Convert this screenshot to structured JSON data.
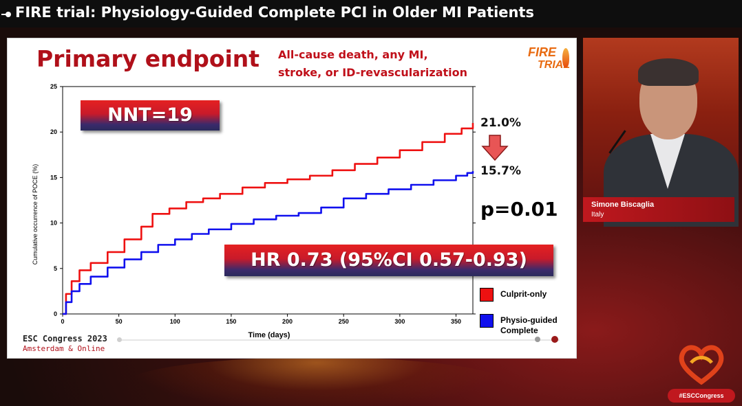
{
  "header": {
    "title": "FIRE trial: Physiology-Guided Complete PCI in Older MI Patients"
  },
  "slide": {
    "title": "Primary endpoint",
    "subtitle_lines": [
      "All-cause death, any MI,",
      "stroke, or ID-revascularization"
    ],
    "logo_word1": "FIRE",
    "logo_word2": "TRIAL",
    "nnt_label": "NNT=19",
    "hr_label": "HR 0.73 (95%CI 0.57-0.93)",
    "culprit_pct": "21.0%",
    "physio_pct": "15.7%",
    "p_value": "p=0.01",
    "legend": [
      {
        "label_lines": [
          "Culprit-only"
        ],
        "color": "#ee1111"
      },
      {
        "label_lines": [
          "Physio-guided",
          "Complete"
        ],
        "color": "#1010ee"
      }
    ],
    "footer_event": "ESC Congress 2023",
    "footer_place": "Amsterdam & Online"
  },
  "speaker": {
    "name": "Simone Biscaglia",
    "country": "Italy"
  },
  "branding": {
    "tag": "#ESCCongress"
  },
  "colors": {
    "accent_red": "#b0101a",
    "culprit": "#ee1111",
    "physio": "#1010ee"
  },
  "chart_data": {
    "type": "line",
    "title": "",
    "xlabel": "Time (days)",
    "ylabel": "Cumulative occurrence of POCE (%)",
    "xlim": [
      0,
      365
    ],
    "ylim": [
      0,
      25
    ],
    "xticks": [
      0,
      50,
      100,
      150,
      200,
      250,
      300,
      350
    ],
    "yticks": [
      0,
      5,
      10,
      15,
      20,
      25
    ],
    "grid": false,
    "series": [
      {
        "name": "Culprit-only",
        "color": "#ee1111",
        "x": [
          0,
          3,
          8,
          15,
          25,
          40,
          55,
          70,
          80,
          95,
          110,
          125,
          140,
          160,
          180,
          200,
          220,
          240,
          260,
          280,
          300,
          320,
          340,
          355,
          365
        ],
        "y": [
          0,
          2.2,
          3.6,
          4.8,
          5.6,
          6.8,
          8.2,
          9.6,
          11.0,
          11.6,
          12.3,
          12.7,
          13.2,
          13.9,
          14.4,
          14.8,
          15.2,
          15.8,
          16.5,
          17.2,
          18.0,
          18.9,
          19.8,
          20.4,
          21.0
        ]
      },
      {
        "name": "Physio-guided Complete",
        "color": "#1010ee",
        "x": [
          0,
          3,
          8,
          15,
          25,
          40,
          55,
          70,
          85,
          100,
          115,
          130,
          150,
          170,
          190,
          210,
          230,
          250,
          270,
          290,
          310,
          330,
          350,
          360,
          365
        ],
        "y": [
          0,
          1.3,
          2.5,
          3.3,
          4.1,
          5.1,
          6.0,
          6.8,
          7.6,
          8.2,
          8.8,
          9.3,
          9.9,
          10.4,
          10.8,
          11.1,
          11.7,
          12.7,
          13.2,
          13.7,
          14.2,
          14.7,
          15.2,
          15.5,
          15.7
        ]
      }
    ]
  }
}
